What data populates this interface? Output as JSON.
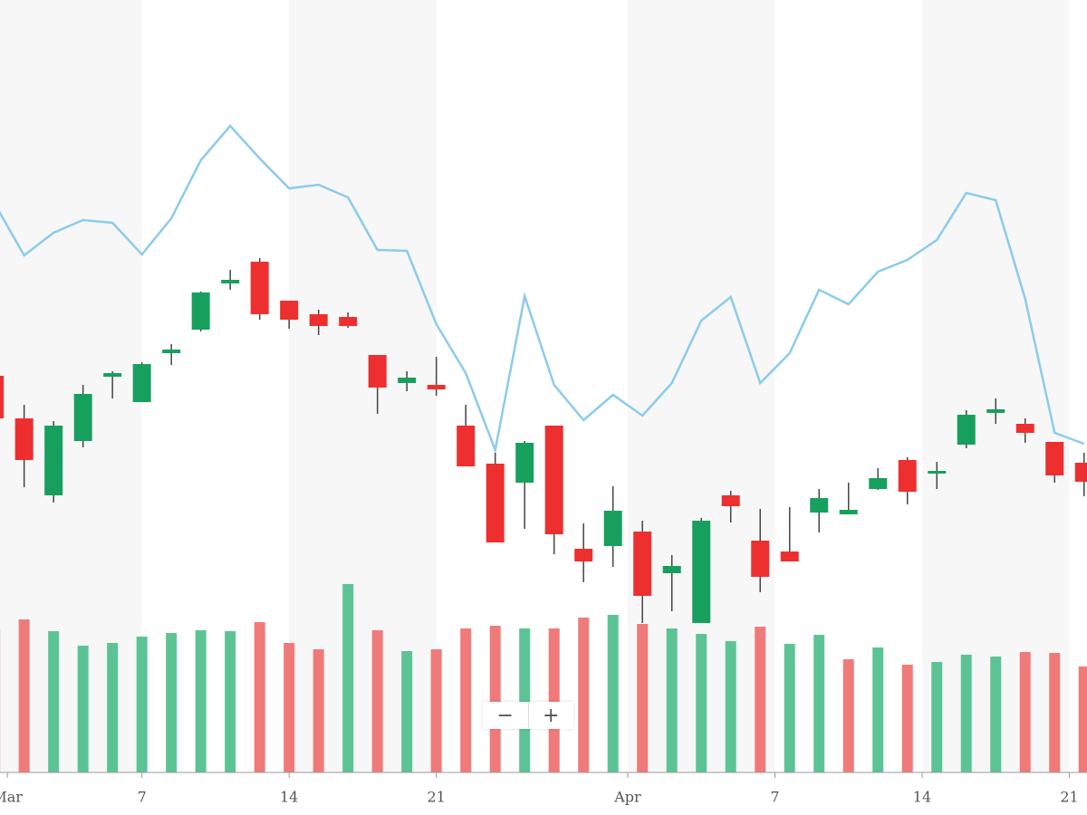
{
  "chart_data": {
    "type": "candlestick",
    "open": [
      48.5,
      43.8,
      35.3,
      41.3,
      48.4,
      45.6,
      51.0,
      53.6,
      58.7,
      61.1,
      56.8,
      55.3,
      55.0,
      50.8,
      47.7,
      47.5,
      43.0,
      38.8,
      36.7,
      43.0,
      29.4,
      29.7,
      31.3,
      26.7,
      21.2,
      35.3,
      30.3,
      29.1,
      33.4,
      33.2,
      36.0,
      39.2,
      37.7,
      40.9,
      44.4,
      43.2,
      41.2,
      38.9
    ],
    "high": [
      49.0,
      45.3,
      43.5,
      47.5,
      49.0,
      50.0,
      52.0,
      57.8,
      60.2,
      61.5,
      56.8,
      55.8,
      55.5,
      50.8,
      49.0,
      50.6,
      45.3,
      40.0,
      41.3,
      43.0,
      32.2,
      36.3,
      32.5,
      28.7,
      32.8,
      35.8,
      33.8,
      34.0,
      36.0,
      36.7,
      38.3,
      39.5,
      39.0,
      44.7,
      46.0,
      43.8,
      41.2,
      40.0
    ],
    "low": [
      43.5,
      36.2,
      34.5,
      40.6,
      46.0,
      45.6,
      49.7,
      53.4,
      58.0,
      54.7,
      53.7,
      53.0,
      53.8,
      44.3,
      46.8,
      46.3,
      38.5,
      30.1,
      31.6,
      28.8,
      25.7,
      27.4,
      21.2,
      22.5,
      21.2,
      32.3,
      24.6,
      28.0,
      31.2,
      33.2,
      35.9,
      34.3,
      36.0,
      40.5,
      43.2,
      41.1,
      36.7,
      35.2
    ],
    "close": [
      43.8,
      39.2,
      43.0,
      46.5,
      48.8,
      49.8,
      51.4,
      57.7,
      59.1,
      55.3,
      54.7,
      54.0,
      54.0,
      47.2,
      48.3,
      47.0,
      38.5,
      30.1,
      41.1,
      31.0,
      28.0,
      33.6,
      24.2,
      27.5,
      32.5,
      34.1,
      26.3,
      28.0,
      35.0,
      33.7,
      37.2,
      35.7,
      38.0,
      44.2,
      44.8,
      42.2,
      37.5,
      36.8
    ],
    "up_color": "#17a05d",
    "down_color": "#ee2f2f",
    "volume": [
      158,
      169,
      156,
      140,
      143,
      150,
      154,
      157,
      156,
      166,
      143,
      136,
      208,
      157,
      134,
      136,
      159,
      162,
      159,
      159,
      171,
      174,
      164,
      159,
      153,
      145,
      161,
      142,
      152,
      125,
      138,
      119,
      122,
      130,
      128,
      133,
      132,
      117
    ],
    "volume_colors": [
      "#f07a7a",
      "#f07a7a",
      "#5cc494",
      "#5cc494",
      "#5cc494",
      "#5cc494",
      "#5cc494",
      "#5cc494",
      "#5cc494",
      "#f07a7a",
      "#f07a7a",
      "#f07a7a",
      "#5cc494",
      "#f07a7a",
      "#5cc494",
      "#f07a7a",
      "#f07a7a",
      "#f07a7a",
      "#5cc494",
      "#f07a7a",
      "#f07a7a",
      "#5cc494",
      "#f07a7a",
      "#5cc494",
      "#5cc494",
      "#5cc494",
      "#f07a7a",
      "#5cc494",
      "#5cc494",
      "#f07a7a",
      "#5cc494",
      "#f07a7a",
      "#5cc494",
      "#5cc494",
      "#5cc494",
      "#f07a7a",
      "#f07a7a",
      "#f07a7a"
    ],
    "line": {
      "color": "#8ccbea",
      "values": [
        67.5,
        61.8,
        64.3,
        65.7,
        65.4,
        61.9,
        65.9,
        72.3,
        76.1,
        72.5,
        69.2,
        69.6,
        68.2,
        62.4,
        62.3,
        54.2,
        48.8,
        40.3,
        57.3,
        47.5,
        43.6,
        46.4,
        44.1,
        47.7,
        54.6,
        57.2,
        47.7,
        51.0,
        58.0,
        56.4,
        60.0,
        61.3,
        63.5,
        68.7,
        67.9,
        57.0,
        42.2,
        41.0
      ]
    },
    "xlim": [
      0.18,
      37.1
    ],
    "xticks": [
      {
        "value": 0.43,
        "label": "Mar"
      },
      {
        "value": 5,
        "label": "7"
      },
      {
        "value": 10,
        "label": "14"
      },
      {
        "value": 15,
        "label": "21"
      },
      {
        "value": 21.5,
        "label": "Apr"
      },
      {
        "value": 26.5,
        "label": "7"
      },
      {
        "value": 31.5,
        "label": "14"
      },
      {
        "value": 36.5,
        "label": "21"
      }
    ],
    "ylim": [
      0,
      90
    ],
    "y2lim": [
      0,
      300
    ],
    "zoom": {
      "out": "−",
      "in": "+"
    }
  }
}
